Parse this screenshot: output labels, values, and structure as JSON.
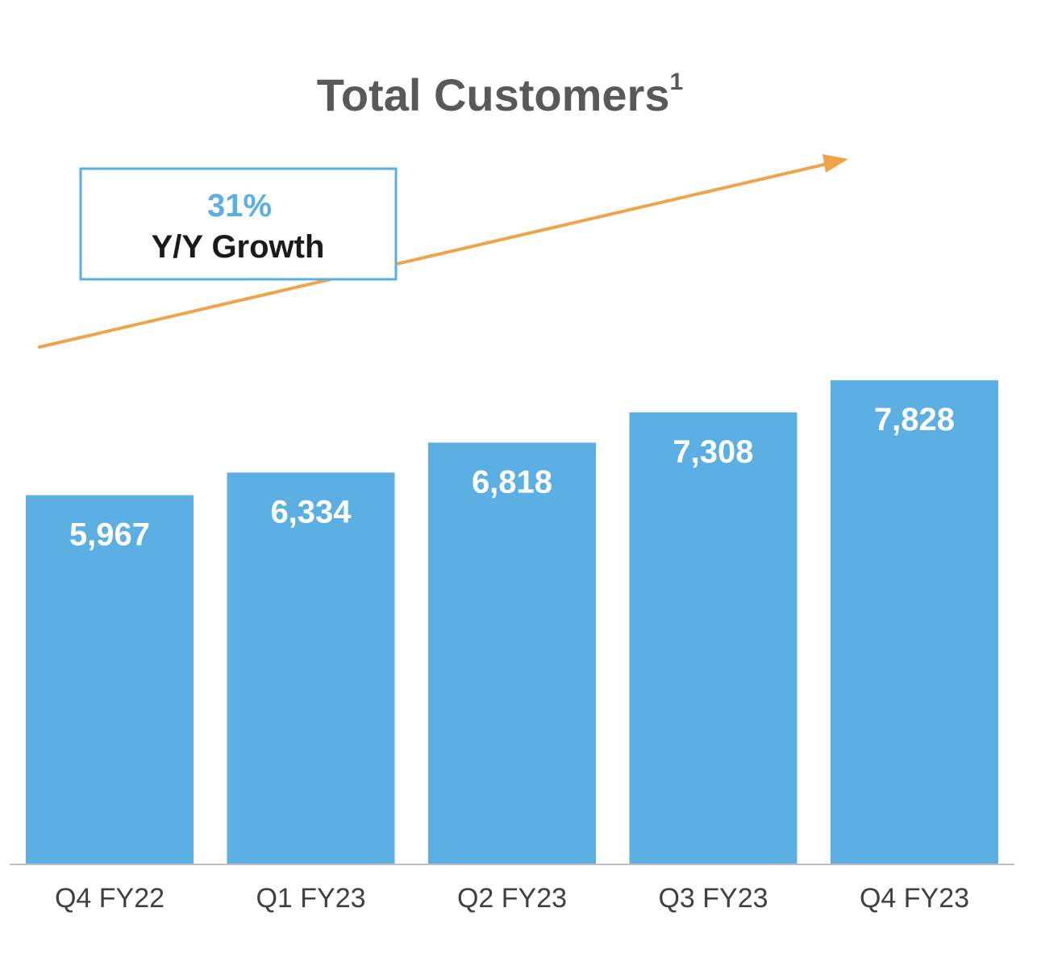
{
  "chart_data": {
    "type": "bar",
    "title": "Total Customers",
    "title_superscript": "1",
    "categories": [
      "Q4 FY22",
      "Q1 FY23",
      "Q2 FY23",
      "Q3 FY23",
      "Q4 FY23"
    ],
    "values": [
      5967,
      6334,
      6818,
      7308,
      7828
    ],
    "value_labels": [
      "5,967",
      "6,334",
      "6,818",
      "7,308",
      "7,828"
    ],
    "xlabel": "",
    "ylabel": "",
    "ylim": [
      0,
      10000
    ],
    "grid": false,
    "annotation": {
      "value": "31%",
      "label": "Y/Y Growth",
      "trend": "increasing"
    }
  },
  "colors": {
    "bar": "#5BAFE3",
    "arrow": "#F0A44A",
    "callout_border": "#5BAFE3",
    "callout_pct": "#5BAFE3",
    "title": "#595959",
    "axis": "#BFBFBF"
  }
}
